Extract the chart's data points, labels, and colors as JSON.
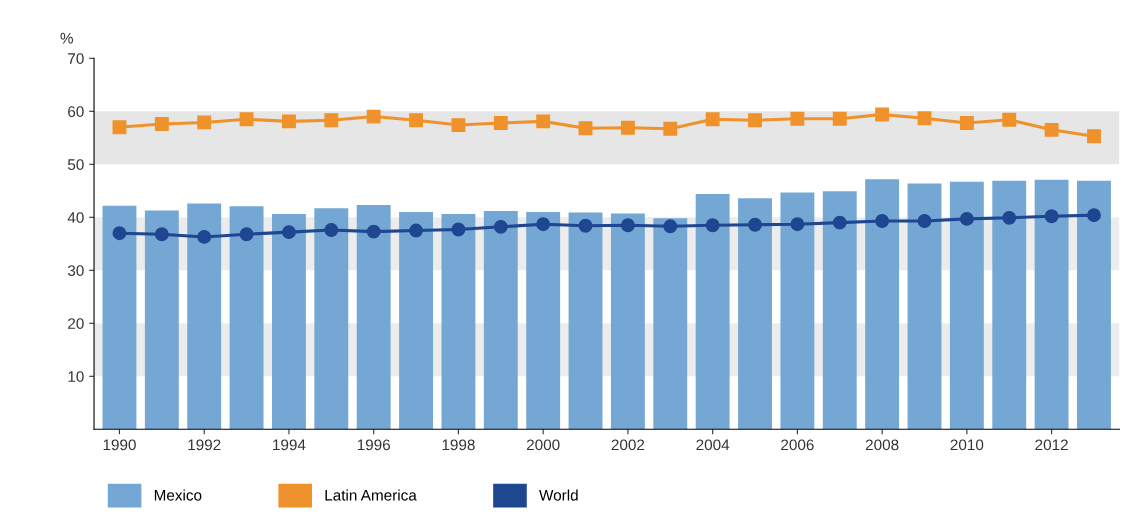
{
  "chart_data": {
    "type": "bar",
    "ylabel": "%",
    "categories": [
      "1990",
      null,
      "1992",
      null,
      "1994",
      null,
      "1996",
      null,
      "1998",
      null,
      "2000",
      null,
      "2002",
      null,
      "2004",
      null,
      "2006",
      null,
      "2008",
      null,
      "2010",
      null,
      "2012",
      null
    ],
    "series": [
      {
        "name": "Mexico",
        "color": "#74a7d4",
        "values": [
          42.2,
          41.3,
          42.6,
          42.1,
          40.6,
          41.7,
          42.3,
          41.0,
          40.6,
          41.2,
          41.0,
          40.9,
          40.7,
          39.8,
          44.4,
          43.6,
          44.7,
          44.9,
          47.2,
          46.4,
          46.7,
          46.9,
          47.1,
          46.9
        ]
      },
      {
        "name": "Latin America",
        "type": "line",
        "marker": "square",
        "color": "#f0922b",
        "values": [
          57.0,
          57.6,
          57.9,
          58.5,
          58.1,
          58.3,
          59.0,
          58.3,
          57.4,
          57.8,
          58.1,
          56.8,
          56.9,
          56.7,
          58.5,
          58.3,
          58.6,
          58.6,
          59.4,
          58.7,
          57.8,
          58.4,
          56.5,
          55.3
        ]
      },
      {
        "name": "World",
        "type": "line",
        "marker": "circle",
        "color": "#1f4690",
        "values": [
          37.0,
          36.8,
          36.3,
          36.8,
          37.2,
          37.6,
          37.3,
          37.5,
          37.7,
          38.2,
          38.7,
          38.4,
          38.5,
          38.3,
          38.5,
          38.6,
          38.7,
          39.0,
          39.3,
          39.3,
          39.7,
          39.9,
          40.2,
          40.4
        ]
      }
    ],
    "ylim": [
      0,
      70
    ],
    "yticks": [
      10,
      20,
      30,
      40,
      50,
      60,
      70
    ],
    "bands": [
      {
        "axis": "y",
        "from": 50,
        "to": 60,
        "color": "#e6e6e6"
      },
      {
        "axis": "y",
        "from": 30,
        "to": 40,
        "color": "#ececec"
      },
      {
        "axis": "y",
        "from": 10,
        "to": 20,
        "color": "#ececec"
      }
    ],
    "grid": false,
    "legend": "bottom left",
    "line_style": "solid"
  }
}
